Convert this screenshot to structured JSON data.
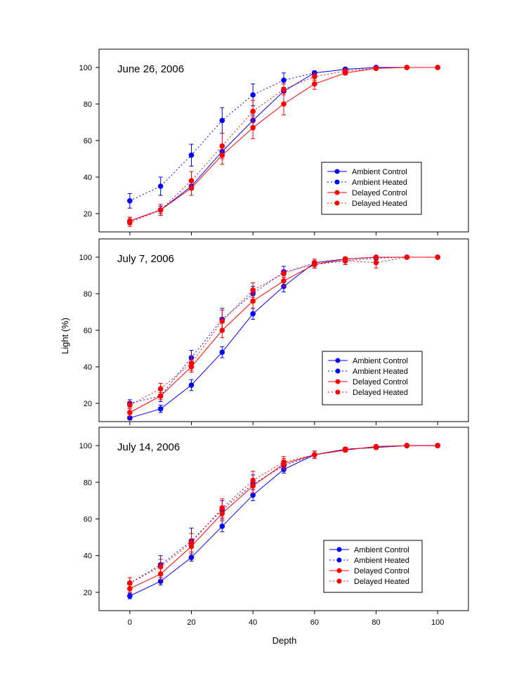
{
  "figure": {
    "ylabel": "Light (%)",
    "xlabel": "Depth"
  },
  "legend_labels": [
    "Ambient Control",
    "Ambient Heated",
    "Delayed Control",
    "Delayed Heated"
  ],
  "colors": {
    "ambient": "#0000ff",
    "delayed": "#ff0000",
    "frame": "#000000"
  },
  "chart_data": [
    {
      "type": "line",
      "title": "June 26, 2006",
      "xlim": [
        -10,
        110
      ],
      "ylim": [
        10,
        110
      ],
      "x_ticks": [
        0,
        20,
        40,
        60,
        80,
        100
      ],
      "y_ticks": [
        20,
        40,
        60,
        80,
        100
      ],
      "x_tick_labels_shown": false,
      "legend_position": "lower-right",
      "series": [
        {
          "name": "Ambient Control",
          "style": "solid",
          "color": "#0000ff",
          "x": [
            0,
            10,
            20,
            30,
            40,
            50,
            60,
            70,
            80,
            90,
            100
          ],
          "y": [
            16,
            22,
            35,
            54,
            71,
            87,
            97,
            99,
            100,
            100,
            100
          ],
          "err": [
            2,
            2,
            2,
            3,
            3,
            2,
            1,
            1,
            0,
            0,
            0
          ]
        },
        {
          "name": "Ambient Heated",
          "style": "dotted",
          "color": "#0000ff",
          "x": [
            0,
            10,
            20,
            30,
            40,
            50,
            60,
            70,
            80,
            90,
            100
          ],
          "y": [
            27,
            35,
            52,
            71,
            85,
            93,
            97,
            99,
            100,
            100,
            100
          ],
          "err": [
            4,
            5,
            6,
            7,
            6,
            4,
            1,
            1,
            0,
            0,
            0
          ]
        },
        {
          "name": "Delayed Control",
          "style": "solid",
          "color": "#ff0000",
          "x": [
            0,
            10,
            20,
            30,
            40,
            50,
            60,
            70,
            80,
            90,
            100
          ],
          "y": [
            16,
            22,
            34,
            52,
            67,
            80,
            91,
            97,
            99.5,
            100,
            100
          ],
          "err": [
            2,
            3,
            4,
            5,
            6,
            6,
            3,
            1,
            0.5,
            0,
            0
          ]
        },
        {
          "name": "Delayed Heated",
          "style": "dotted",
          "color": "#ff0000",
          "x": [
            0,
            10,
            20,
            30,
            40,
            50,
            60,
            70,
            80,
            90,
            100
          ],
          "y": [
            15,
            22,
            38,
            57,
            76,
            88,
            95,
            98,
            99.5,
            100,
            100
          ],
          "err": [
            2,
            3,
            5,
            7,
            6,
            3,
            2,
            1,
            0.5,
            0,
            0
          ]
        }
      ]
    },
    {
      "type": "line",
      "title": "July 7, 2006",
      "xlim": [
        -10,
        110
      ],
      "ylim": [
        10,
        110
      ],
      "x_ticks": [
        0,
        20,
        40,
        60,
        80,
        100
      ],
      "y_ticks": [
        20,
        40,
        60,
        80,
        100
      ],
      "x_tick_labels_shown": false,
      "legend_position": "lower-right",
      "series": [
        {
          "name": "Ambient Control",
          "style": "solid",
          "color": "#0000ff",
          "x": [
            0,
            10,
            20,
            30,
            40,
            50,
            60,
            70,
            80,
            90,
            100
          ],
          "y": [
            12,
            17,
            30,
            48,
            69,
            84,
            97,
            99,
            100,
            100,
            100
          ],
          "err": [
            1,
            2,
            3,
            3,
            3,
            3,
            1,
            1,
            0,
            0,
            0
          ]
        },
        {
          "name": "Ambient Heated",
          "style": "dotted",
          "color": "#0000ff",
          "x": [
            0,
            10,
            20,
            30,
            40,
            50,
            60,
            70,
            80,
            90,
            100
          ],
          "y": [
            20,
            24,
            45,
            66,
            80,
            92,
            96,
            98,
            99.5,
            100,
            100
          ],
          "err": [
            2,
            3,
            4,
            6,
            4,
            3,
            2,
            2,
            0.5,
            0,
            0
          ]
        },
        {
          "name": "Delayed Control",
          "style": "solid",
          "color": "#ff0000",
          "x": [
            0,
            10,
            20,
            30,
            40,
            50,
            60,
            70,
            80,
            90,
            100
          ],
          "y": [
            15,
            24,
            40,
            60,
            76,
            87,
            96,
            99,
            100,
            100,
            100
          ],
          "err": [
            2,
            2,
            3,
            4,
            4,
            3,
            2,
            1,
            0,
            0,
            0
          ]
        },
        {
          "name": "Delayed Heated",
          "style": "dotted",
          "color": "#ff0000",
          "x": [
            0,
            10,
            20,
            30,
            40,
            50,
            60,
            70,
            80,
            90,
            100
          ],
          "y": [
            19,
            28,
            42,
            65,
            82,
            91,
            97,
            98,
            97,
            100,
            100
          ],
          "err": [
            2,
            3,
            4,
            6,
            4,
            2,
            2,
            2,
            3,
            0,
            0
          ]
        }
      ]
    },
    {
      "type": "line",
      "title": "July 14, 2006",
      "xlim": [
        -10,
        110
      ],
      "ylim": [
        10,
        110
      ],
      "x_ticks": [
        0,
        20,
        40,
        60,
        80,
        100
      ],
      "y_ticks": [
        20,
        40,
        60,
        80,
        100
      ],
      "x_tick_labels": [
        "0",
        "20",
        "40",
        "60",
        "80",
        "100"
      ],
      "x_tick_labels_shown": true,
      "legend_position": "lower-right",
      "series": [
        {
          "name": "Ambient Control",
          "style": "solid",
          "color": "#0000ff",
          "x": [
            0,
            10,
            20,
            30,
            40,
            50,
            60,
            70,
            80,
            90,
            100
          ],
          "y": [
            18,
            26,
            39,
            56,
            73,
            87,
            95,
            98,
            99,
            100,
            100
          ],
          "err": [
            1.5,
            2,
            2,
            3,
            3,
            2,
            2,
            1,
            1,
            0,
            0
          ]
        },
        {
          "name": "Ambient Heated",
          "style": "dotted",
          "color": "#0000ff",
          "x": [
            0,
            10,
            20,
            30,
            40,
            50,
            60,
            70,
            80,
            90,
            100
          ],
          "y": [
            25,
            35,
            48,
            65,
            79,
            89,
            95,
            98,
            99,
            100,
            100
          ],
          "err": [
            3,
            5,
            7,
            5,
            5,
            3,
            2,
            1,
            1,
            0,
            0
          ]
        },
        {
          "name": "Delayed Control",
          "style": "solid",
          "color": "#ff0000",
          "x": [
            0,
            10,
            20,
            30,
            40,
            50,
            60,
            70,
            80,
            90,
            100
          ],
          "y": [
            22,
            30,
            45,
            63,
            78,
            90,
            95,
            97.5,
            99.5,
            100,
            100
          ],
          "err": [
            2,
            3,
            4,
            4,
            4,
            3,
            2,
            1,
            0.5,
            0,
            0
          ]
        },
        {
          "name": "Delayed Heated",
          "style": "dotted",
          "color": "#ff0000",
          "x": [
            0,
            10,
            20,
            30,
            40,
            50,
            60,
            70,
            80,
            90,
            100
          ],
          "y": [
            25,
            34,
            47,
            66,
            81,
            91,
            95,
            98,
            99,
            100,
            100
          ],
          "err": [
            3,
            4,
            5,
            5,
            5,
            3,
            2,
            1,
            1,
            0,
            0
          ]
        }
      ]
    }
  ]
}
